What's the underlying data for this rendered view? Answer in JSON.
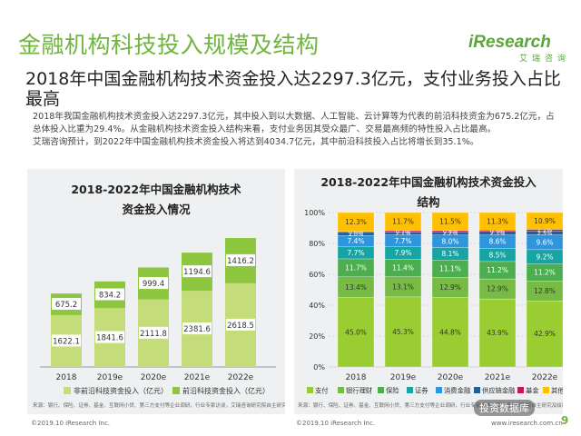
{
  "header": {
    "title": "金融机构科技投入规模及结构",
    "subtitle": "2018年中国金融机构技术资金投入达2297.3亿元，支付业务投入占比最高"
  },
  "logo": {
    "brand_i": "i",
    "brand_rest": "Research",
    "tagline": "艾瑞咨询"
  },
  "body": {
    "p1": "2018年我国金融机构技术资金投入达2297.3亿元，其中投入到以大数据、人工智能、云计算等为代表的前沿科技资金为675.2亿元，占总体投入比重为29.4%。从金融机构技术资金投入结构来看，支付业务因其受众最广、交易最高频的特性投入占比最高。",
    "p2": "艾瑞咨询预计，到2022年中国金融机构技术资金投入将达到4034.7亿元，其中前沿科技投入占比将增长到35.1%。"
  },
  "colors": {
    "accent": "#6fb53f",
    "frontier": "#8dc63f",
    "nonfrontier": "#c4dd7a",
    "payment": "#9acd32",
    "wealth": "#77bb44",
    "insurance": "#4cae4f",
    "securities": "#16a5a2",
    "consumer": "#2f96dd",
    "supplychain": "#1f5f9e",
    "fund": "#c2185b",
    "other": "#ffc000"
  },
  "chart_data": [
    {
      "type": "bar",
      "title_line1": "2018-2022年中国金融机构技术",
      "title_line2": "资金投入情况",
      "categories": [
        "2018",
        "2019e",
        "2020e",
        "2021e",
        "2022e"
      ],
      "series": [
        {
          "name": "非前沿科技资金投入（亿元）",
          "values": [
            1622.1,
            1841.6,
            2111.8,
            2381.6,
            2618.5
          ]
        },
        {
          "name": "前沿科技资金投入（亿元）",
          "values": [
            675.2,
            834.2,
            999.4,
            1194.6,
            1416.2
          ]
        }
      ],
      "stacked": true,
      "legend_position": "bottom",
      "source": "来源：银行、保险、证券、基金、互联网小贷、第三方支付等企业调研，行业专家访谈，艾瑞咨询研究院自主研究及绘制。"
    },
    {
      "type": "bar",
      "title_line1": "2018-2022年中国金融机构技术资金投入",
      "title_line2": "结构",
      "categories": [
        "2018",
        "2019e",
        "2020e",
        "2021e",
        "2022e"
      ],
      "ylim": [
        0,
        100
      ],
      "yticks": [
        "0%",
        "20%",
        "40%",
        "60%",
        "80%",
        "100%"
      ],
      "stacked": true,
      "legend_position": "bottom",
      "series": [
        {
          "name": "支付",
          "values": [
            45.0,
            45.3,
            44.8,
            43.9,
            42.9
          ],
          "labels": [
            "45.0%",
            "45.3%",
            "44.8%",
            "43.9%",
            "42.9%"
          ]
        },
        {
          "name": "银行理财",
          "values": [
            13.4,
            13.1,
            12.9,
            12.9,
            12.8
          ],
          "labels": [
            "13.4%",
            "13.1%",
            "12.9%",
            "12.9%",
            "12.8%"
          ]
        },
        {
          "name": "保险",
          "values": [
            11.7,
            11.4,
            11.1,
            11.2,
            11.2
          ],
          "labels": [
            "11.7%",
            "11.4%",
            "11.1%",
            "11.2%",
            "11.2%"
          ]
        },
        {
          "name": "证券",
          "values": [
            7.7,
            7.9,
            8.1,
            8.5,
            9.2
          ],
          "labels": [
            "7.7%",
            "7.9%",
            "8.1%",
            "8.5%",
            "9.2%"
          ]
        },
        {
          "name": "消费金融",
          "values": [
            7.4,
            7.7,
            8.0,
            8.6,
            9.6
          ],
          "labels": [
            "7.4%",
            "7.7%",
            "8.0%",
            "8.6%",
            "9.6%"
          ]
        },
        {
          "name": "供应链金融",
          "values": [
            2.0,
            2.1,
            2.2,
            2.3,
            2.5
          ],
          "labels": [
            "2.0%",
            "2.1%",
            "2.2%",
            "2.3%",
            "2.5%"
          ]
        },
        {
          "name": "基金",
          "values": [
            0.6,
            0.7,
            0.8,
            0.9,
            1.1
          ],
          "labels": [
            "0.6%",
            "0.7%",
            "0.8%",
            "0.9%",
            "1.1%"
          ]
        },
        {
          "name": "其他",
          "values": [
            12.3,
            11.7,
            11.5,
            11.3,
            10.9
          ],
          "labels": [
            "12.3%",
            "11.7%",
            "11.5%",
            "11.3%",
            "10.9%"
          ]
        }
      ],
      "source": "来源：银行、保险、证券、基金、互联网小贷、第三方支付等企业调研，行业专家访谈，艾瑞咨询研究院自主研究及绘制。"
    }
  ],
  "footer": {
    "left": "©2019.10 iResearch Inc.",
    "mid": "©2019.10 iResearch Inc.",
    "right": "www.iresearch.com.cn",
    "watermark": "投资数据库",
    "page": "9"
  }
}
